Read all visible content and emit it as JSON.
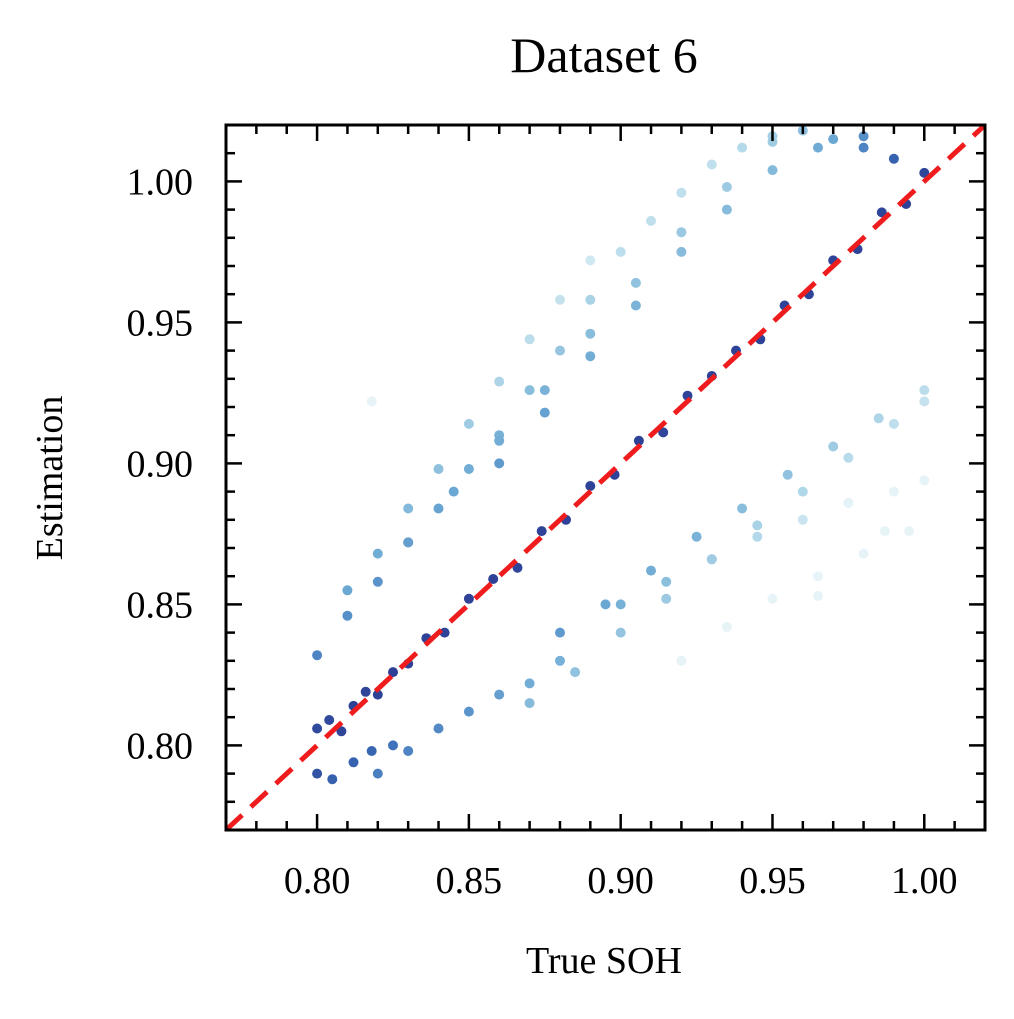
{
  "chart_data": {
    "type": "scatter",
    "title": "Dataset 6",
    "xlabel": "True SOH",
    "ylabel": "Estimation",
    "xlim": [
      0.77,
      1.02
    ],
    "ylim": [
      0.77,
      1.02
    ],
    "xticks": [
      "0.80",
      "0.85",
      "0.90",
      "0.95",
      "1.00"
    ],
    "yticks": [
      "0.80",
      "0.85",
      "0.90",
      "0.95",
      "1.00"
    ],
    "reference_line": {
      "from": [
        0.77,
        0.77
      ],
      "to": [
        1.02,
        1.02
      ],
      "style": "dashed",
      "color": "#ee1c1c"
    },
    "colormap": [
      "#e6f4f8",
      "#a9d3e6",
      "#6aa7d3",
      "#3a6bb7",
      "#2d3f95"
    ],
    "series": [
      {
        "x": [
          0.8,
          0.804,
          0.808,
          0.812,
          0.816,
          0.82,
          0.825,
          0.83,
          0.836,
          0.842
        ],
        "y": [
          0.806,
          0.809,
          0.805,
          0.814,
          0.819,
          0.818,
          0.826,
          0.829,
          0.838,
          0.84
        ]
      },
      {
        "x": [
          0.85,
          0.858,
          0.866,
          0.874,
          0.882,
          0.89,
          0.898,
          0.906,
          0.914,
          0.922
        ],
        "y": [
          0.852,
          0.859,
          0.863,
          0.876,
          0.88,
          0.892,
          0.896,
          0.908,
          0.911,
          0.924
        ]
      },
      {
        "x": [
          0.93,
          0.938,
          0.946,
          0.954,
          0.962,
          0.97,
          0.978,
          0.986,
          0.994,
          1.0
        ],
        "y": [
          0.931,
          0.94,
          0.944,
          0.956,
          0.96,
          0.972,
          0.976,
          0.989,
          0.992,
          1.003
        ]
      },
      {
        "x": [
          0.8,
          0.81,
          0.82,
          0.83,
          0.84,
          0.85,
          0.86,
          0.87,
          0.88,
          0.89
        ],
        "y": [
          0.832,
          0.846,
          0.858,
          0.872,
          0.884,
          0.898,
          0.91,
          0.926,
          0.94,
          0.958
        ]
      },
      {
        "x": [
          0.9,
          0.91,
          0.92,
          0.93,
          0.94,
          0.95,
          0.96,
          0.97,
          0.98,
          0.99
        ],
        "y": [
          0.975,
          0.986,
          0.996,
          1.006,
          1.012,
          1.016,
          1.018,
          1.015,
          1.012,
          1.008
        ]
      },
      {
        "x": [
          0.81,
          0.82,
          0.83,
          0.84,
          0.85,
          0.86,
          0.87,
          0.88,
          0.89
        ],
        "y": [
          0.855,
          0.868,
          0.884,
          0.898,
          0.914,
          0.929,
          0.944,
          0.958,
          0.972
        ]
      },
      {
        "x": [
          0.83,
          0.845,
          0.86,
          0.875,
          0.89,
          0.905,
          0.92,
          0.935,
          0.95
        ],
        "y": [
          0.872,
          0.89,
          0.908,
          0.926,
          0.946,
          0.964,
          0.982,
          0.998,
          1.014
        ]
      },
      {
        "x": [
          0.86,
          0.875,
          0.89,
          0.905,
          0.92,
          0.935,
          0.95,
          0.965,
          0.98
        ],
        "y": [
          0.9,
          0.918,
          0.938,
          0.956,
          0.975,
          0.99,
          1.004,
          1.012,
          1.016
        ]
      },
      {
        "x": [
          0.82,
          0.83,
          0.84,
          0.85,
          0.86,
          0.87,
          0.88
        ],
        "y": [
          0.79,
          0.798,
          0.806,
          0.812,
          0.818,
          0.822,
          0.83
        ]
      },
      {
        "x": [
          0.87,
          0.885,
          0.9,
          0.915,
          0.93,
          0.945,
          0.96,
          0.975,
          0.99,
          1.0
        ],
        "y": [
          0.815,
          0.826,
          0.84,
          0.852,
          0.866,
          0.878,
          0.89,
          0.902,
          0.914,
          0.922
        ]
      },
      {
        "x": [
          0.88,
          0.895,
          0.91,
          0.925,
          0.94,
          0.955,
          0.97,
          0.985,
          1.0
        ],
        "y": [
          0.84,
          0.85,
          0.862,
          0.874,
          0.884,
          0.896,
          0.906,
          0.916,
          0.926
        ]
      },
      {
        "x": [
          0.9,
          0.915,
          0.93,
          0.945,
          0.96,
          0.975,
          0.99,
          1.0
        ],
        "y": [
          0.85,
          0.858,
          0.866,
          0.874,
          0.88,
          0.886,
          0.89,
          0.894
        ]
      },
      {
        "x": [
          0.92,
          0.935,
          0.95,
          0.965,
          0.98,
          0.995
        ],
        "y": [
          0.83,
          0.842,
          0.852,
          0.86,
          0.868,
          0.876
        ]
      },
      {
        "x": [
          0.8,
          0.805,
          0.812,
          0.818,
          0.825
        ],
        "y": [
          0.79,
          0.788,
          0.794,
          0.798,
          0.8
        ]
      },
      {
        "x": [
          0.818,
          0.987,
          0.965
        ],
        "y": [
          0.922,
          0.876,
          0.853
        ]
      }
    ]
  }
}
